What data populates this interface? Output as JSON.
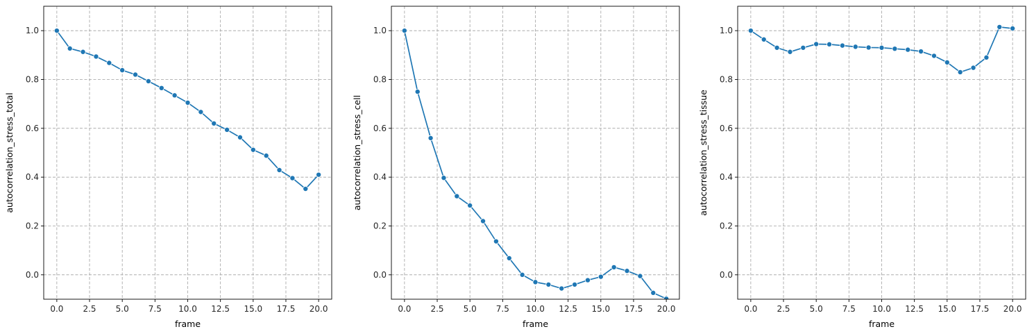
{
  "chart_data": [
    {
      "type": "line",
      "marker": "circle",
      "color": "#1f77b4",
      "grid": true,
      "xlabel": "frame",
      "ylabel": "autocorrelation_stress_total",
      "xlim": [
        -1.0,
        21.0
      ],
      "ylim": [
        -0.1,
        1.1
      ],
      "xticks": [
        0.0,
        2.5,
        5.0,
        7.5,
        10.0,
        12.5,
        15.0,
        17.5,
        20.0
      ],
      "xtick_labels": [
        "0.0",
        "2.5",
        "5.0",
        "7.5",
        "10.0",
        "12.5",
        "15.0",
        "17.5",
        "20.0"
      ],
      "yticks": [
        0.0,
        0.2,
        0.4,
        0.6,
        0.8,
        1.0
      ],
      "ytick_labels": [
        "0.0",
        "0.2",
        "0.4",
        "0.6",
        "0.8",
        "1.0"
      ],
      "x": [
        0,
        1,
        2,
        3,
        4,
        5,
        6,
        7,
        8,
        9,
        10,
        11,
        12,
        13,
        14,
        15,
        16,
        17,
        18,
        19,
        20
      ],
      "y": [
        1.0,
        0.927,
        0.913,
        0.894,
        0.868,
        0.838,
        0.82,
        0.793,
        0.765,
        0.735,
        0.705,
        0.667,
        0.62,
        0.594,
        0.563,
        0.512,
        0.488,
        0.429,
        0.396,
        0.352,
        0.41
      ]
    },
    {
      "type": "line",
      "marker": "circle",
      "color": "#1f77b4",
      "grid": true,
      "xlabel": "frame",
      "ylabel": "autocorrelation_stress_cell",
      "xlim": [
        -1.0,
        21.0
      ],
      "ylim": [
        -0.1,
        1.1
      ],
      "xticks": [
        0.0,
        2.5,
        5.0,
        7.5,
        10.0,
        12.5,
        15.0,
        17.5,
        20.0
      ],
      "xtick_labels": [
        "0.0",
        "2.5",
        "5.0",
        "7.5",
        "10.0",
        "12.5",
        "15.0",
        "17.5",
        "20.0"
      ],
      "yticks": [
        0.0,
        0.2,
        0.4,
        0.6,
        0.8,
        1.0
      ],
      "ytick_labels": [
        "0.0",
        "0.2",
        "0.4",
        "0.6",
        "0.8",
        "1.0"
      ],
      "x": [
        0,
        1,
        2,
        3,
        4,
        5,
        6,
        7,
        8,
        9,
        10,
        11,
        12,
        13,
        14,
        15,
        16,
        17,
        18,
        19,
        20
      ],
      "y": [
        1.0,
        0.75,
        0.56,
        0.397,
        0.322,
        0.284,
        0.22,
        0.137,
        0.068,
        0.0,
        -0.03,
        -0.04,
        -0.056,
        -0.04,
        -0.022,
        -0.008,
        0.031,
        0.016,
        -0.005,
        -0.074,
        -0.098
      ]
    },
    {
      "type": "line",
      "marker": "circle",
      "color": "#1f77b4",
      "grid": true,
      "xlabel": "frame",
      "ylabel": "autocorrelation_stress_tissue",
      "xlim": [
        -1.0,
        21.0
      ],
      "ylim": [
        -0.1,
        1.1
      ],
      "xticks": [
        0.0,
        2.5,
        5.0,
        7.5,
        10.0,
        12.5,
        15.0,
        17.5,
        20.0
      ],
      "xtick_labels": [
        "0.0",
        "2.5",
        "5.0",
        "7.5",
        "10.0",
        "12.5",
        "15.0",
        "17.5",
        "20.0"
      ],
      "yticks": [
        0.0,
        0.2,
        0.4,
        0.6,
        0.8,
        1.0
      ],
      "ytick_labels": [
        "0.0",
        "0.2",
        "0.4",
        "0.6",
        "0.8",
        "1.0"
      ],
      "x": [
        0,
        1,
        2,
        3,
        4,
        5,
        6,
        7,
        8,
        9,
        10,
        11,
        12,
        13,
        14,
        15,
        16,
        17,
        18,
        19,
        20
      ],
      "y": [
        1.0,
        0.964,
        0.93,
        0.913,
        0.93,
        0.945,
        0.944,
        0.939,
        0.934,
        0.931,
        0.93,
        0.926,
        0.922,
        0.915,
        0.897,
        0.87,
        0.83,
        0.848,
        0.89,
        1.015,
        1.009
      ]
    }
  ]
}
